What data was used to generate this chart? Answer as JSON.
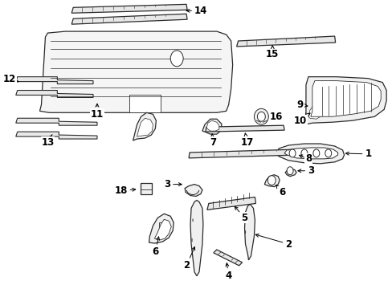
{
  "background_color": "#ffffff",
  "line_color": "#2a2a2a",
  "label_color": "#000000",
  "border_color": "#000000",
  "figsize": [
    4.89,
    3.6
  ],
  "dpi": 100
}
